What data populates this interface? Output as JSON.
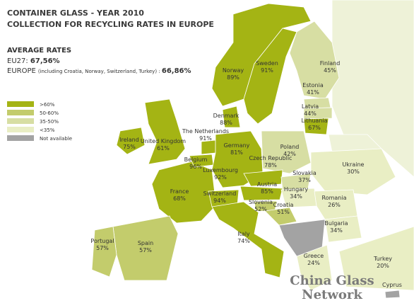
{
  "header": {
    "title_line1": "CONTAINER GLASS  - YEAR 2010",
    "title_line2": "COLLECTION FOR RECYCLING RATES IN EUROPE",
    "average_heading": "AVERAGE RATES",
    "eu27_label": "EU27: ",
    "eu27_value": "67,56%",
    "europe_label": "EUROPE",
    "europe_note": "(including Croatia, Norway, Switzerland, Turkey) : ",
    "europe_value": "66,86%"
  },
  "legend": [
    {
      "label": ">60%",
      "color": "#a4b414"
    },
    {
      "label": "50-60%",
      "color": "#c3cc6c"
    },
    {
      "label": "35-50%",
      "color": "#d7dea3"
    },
    {
      "label": "<35%",
      "color": "#e9eec4"
    },
    {
      "label": "Not available",
      "color": "#a3a3a3"
    }
  ],
  "countries": [
    {
      "name": "Norway",
      "rate": "89%"
    },
    {
      "name": "Sweden",
      "rate": "91%"
    },
    {
      "name": "Finland",
      "rate": "45%"
    },
    {
      "name": "Estonia",
      "rate": "41%"
    },
    {
      "name": "Latvia",
      "rate": "44%"
    },
    {
      "name": "Lithuania",
      "rate": "67%"
    },
    {
      "name": "Denmark",
      "rate": "88%"
    },
    {
      "name": "Ireland",
      "rate": "75%"
    },
    {
      "name": "United Kingdom",
      "rate": "61%"
    },
    {
      "name": "The Netherlands",
      "rate": "91%"
    },
    {
      "name": "Belgium",
      "rate": "96%"
    },
    {
      "name": "Germany",
      "rate": "81%"
    },
    {
      "name": "Poland",
      "rate": "42%"
    },
    {
      "name": "Luxembourg",
      "rate": "92%"
    },
    {
      "name": "Czech Republic",
      "rate": "78%"
    },
    {
      "name": "Slovakia",
      "rate": "37%"
    },
    {
      "name": "Ukraine",
      "rate": "30%"
    },
    {
      "name": "France",
      "rate": "68%"
    },
    {
      "name": "Switzerland",
      "rate": "94%"
    },
    {
      "name": "Austria",
      "rate": "85%"
    },
    {
      "name": "Hungary",
      "rate": "34%"
    },
    {
      "name": "Romania",
      "rate": "26%"
    },
    {
      "name": "Slovenia",
      "rate": "52%"
    },
    {
      "name": "Croatia",
      "rate": "51%"
    },
    {
      "name": "Bulgaria",
      "rate": "34%"
    },
    {
      "name": "Portugal",
      "rate": "57%"
    },
    {
      "name": "Spain",
      "rate": "57%"
    },
    {
      "name": "Italy",
      "rate": "74%"
    },
    {
      "name": "Greece",
      "rate": "24%"
    },
    {
      "name": "Turkey",
      "rate": "20%"
    },
    {
      "name": "Cyprus"
    }
  ],
  "watermark": {
    "line1": "China Glass",
    "line2": "Network"
  }
}
